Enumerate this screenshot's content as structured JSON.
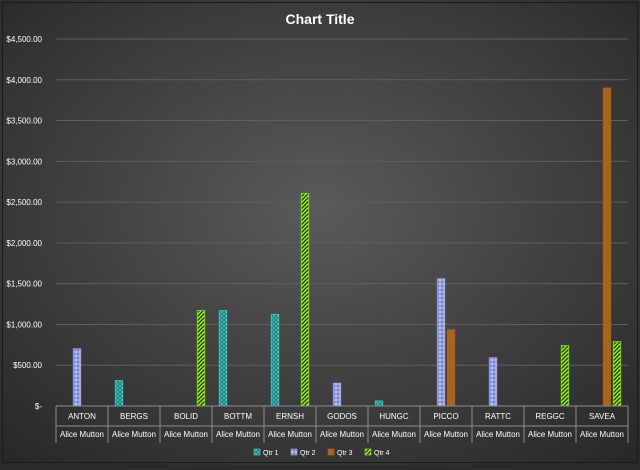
{
  "chart_data": {
    "type": "bar",
    "title": "Chart Title",
    "categories": [
      "ANTON",
      "BERGS",
      "BOLID",
      "BOTTM",
      "ERNSH",
      "GODOS",
      "HUNGC",
      "PICCO",
      "RATTC",
      "REGGC",
      "SAVEA"
    ],
    "subcategories": [
      "Alice Mutton",
      "Alice Mutton",
      "Alice Mutton",
      "Alice Mutton",
      "Alice Mutton",
      "Alice Mutton",
      "Alice Mutton",
      "Alice Mutton",
      "Alice Mutton",
      "Alice Mutton",
      "Alice Mutton"
    ],
    "series": [
      {
        "name": "Qtr 1",
        "color": "#3ec9c2",
        "values": [
          null,
          312,
          null,
          1170,
          1123,
          null,
          62,
          null,
          null,
          null,
          null
        ]
      },
      {
        "name": "Qtr 2",
        "color": "#9ea7e6",
        "values": [
          702,
          null,
          null,
          null,
          null,
          280,
          null,
          1560,
          592,
          null,
          null
        ]
      },
      {
        "name": "Qtr 3",
        "color": "#c8501c",
        "values": [
          null,
          null,
          null,
          null,
          null,
          null,
          null,
          936,
          null,
          null,
          3900
        ]
      },
      {
        "name": "Qtr 4",
        "color": "#7ee81c",
        "values": [
          null,
          null,
          1170,
          null,
          2607,
          null,
          null,
          null,
          null,
          741,
          789
        ]
      }
    ],
    "yticks": [
      "$-",
      "$500.00",
      "$1,000.00",
      "$1,500.00",
      "$2,000.00",
      "$2,500.00",
      "$3,000.00",
      "$3,500.00",
      "$4,000.00",
      "$4,500.00"
    ],
    "ylim": [
      0,
      4500
    ],
    "ystep": 500,
    "grid": true,
    "legend_position": "bottom"
  }
}
